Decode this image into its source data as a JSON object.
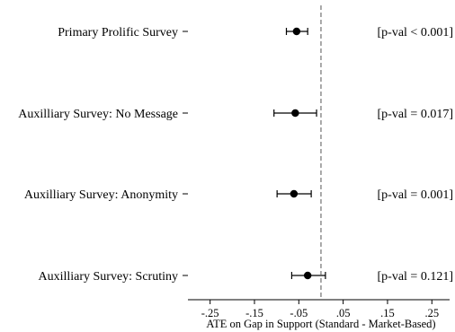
{
  "chart_data": {
    "type": "coefficient_plot",
    "title": "",
    "xlabel": "ATE on Gap in Support (Standard - Market-Based)",
    "ylabel": "",
    "xlim": [
      -0.3,
      0.29
    ],
    "xticks": [
      -0.25,
      -0.15,
      -0.05,
      0.05,
      0.15,
      0.25
    ],
    "xtick_labels": [
      "-.25",
      "-.15",
      "-.05",
      ".05",
      ".15",
      ".25"
    ],
    "reference_line": {
      "x": 0.0,
      "style": "dashed"
    },
    "grid": false,
    "legend": "none",
    "points": [
      {
        "label": "Primary Prolific Survey",
        "estimate": -0.055,
        "ci_low": -0.078,
        "ci_high": -0.03,
        "pval_text": "[p-val < 0.001]"
      },
      {
        "label": "Auxilliary Survey: No Message",
        "estimate": -0.058,
        "ci_low": -0.106,
        "ci_high": -0.01,
        "pval_text": "[p-val = 0.017]"
      },
      {
        "label": "Auxilliary Survey: Anonymity",
        "estimate": -0.061,
        "ci_low": -0.099,
        "ci_high": -0.022,
        "pval_text": "[p-val = 0.001]"
      },
      {
        "label": "Auxilliary Survey: Scrutiny",
        "estimate": -0.03,
        "ci_low": -0.066,
        "ci_high": 0.01,
        "pval_text": "[p-val = 0.121]"
      }
    ]
  },
  "colors": {
    "marker": "#000000",
    "axis": "#000000",
    "reference_line": "#555555"
  }
}
